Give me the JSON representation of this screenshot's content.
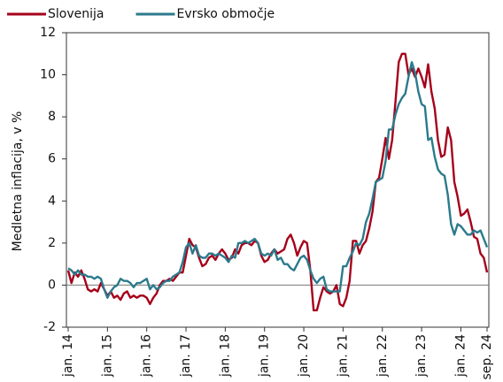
{
  "chart_data": {
    "type": "line",
    "y_label": "Medletna inflacija, v %",
    "categories": [
      "jan. 14",
      null,
      null,
      null,
      null,
      null,
      null,
      null,
      null,
      null,
      null,
      null,
      "jan. 15",
      null,
      null,
      null,
      null,
      null,
      null,
      null,
      null,
      null,
      null,
      null,
      "jan. 16",
      null,
      null,
      null,
      null,
      null,
      null,
      null,
      null,
      null,
      null,
      null,
      "jan. 17",
      null,
      null,
      null,
      null,
      null,
      null,
      null,
      null,
      null,
      null,
      null,
      "jan. 18",
      null,
      null,
      null,
      null,
      null,
      null,
      null,
      null,
      null,
      null,
      null,
      "jan. 19",
      null,
      null,
      null,
      null,
      null,
      null,
      null,
      null,
      null,
      null,
      null,
      "jan. 20",
      null,
      null,
      null,
      null,
      null,
      null,
      null,
      null,
      null,
      null,
      null,
      "jan. 21",
      null,
      null,
      null,
      null,
      null,
      null,
      null,
      null,
      null,
      null,
      null,
      "jan. 22",
      null,
      null,
      null,
      null,
      null,
      null,
      null,
      null,
      null,
      null,
      null,
      "jan. 23",
      null,
      null,
      null,
      null,
      null,
      null,
      null,
      null,
      null,
      null,
      null,
      "jan. 24",
      null,
      null,
      null,
      null,
      null,
      null,
      null,
      "sep. 24"
    ],
    "series": [
      {
        "name": "Slovenija",
        "color": "#a6001a",
        "values": [
          0.7,
          0.1,
          0.6,
          0.4,
          0.7,
          0.3,
          -0.2,
          -0.3,
          -0.2,
          -0.3,
          0.1,
          -0.2,
          -0.5,
          -0.3,
          -0.6,
          -0.5,
          -0.7,
          -0.4,
          -0.3,
          -0.6,
          -0.5,
          -0.6,
          -0.5,
          -0.5,
          -0.6,
          -0.9,
          -0.6,
          -0.4,
          0.0,
          0.2,
          0.2,
          0.3,
          0.2,
          0.4,
          0.6,
          0.6,
          1.4,
          2.2,
          1.9,
          1.8,
          1.3,
          0.9,
          1.0,
          1.3,
          1.4,
          1.2,
          1.5,
          1.7,
          1.5,
          1.2,
          1.3,
          1.7,
          1.5,
          1.9,
          2.0,
          2.0,
          1.9,
          2.1,
          2.0,
          1.4,
          1.1,
          1.2,
          1.5,
          1.7,
          1.5,
          1.6,
          1.7,
          2.2,
          2.4,
          2.0,
          1.4,
          1.8,
          2.1,
          2.0,
          0.7,
          -1.2,
          -1.2,
          -0.6,
          -0.1,
          -0.3,
          -0.4,
          -0.3,
          0.0,
          -0.9,
          -1.0,
          -0.6,
          0.2,
          2.1,
          2.1,
          1.5,
          1.9,
          2.1,
          2.7,
          3.5,
          4.9,
          5.1,
          6.0,
          7.0,
          6.0,
          6.9,
          8.7,
          10.6,
          11.0,
          11.0,
          10.0,
          10.3,
          9.9,
          10.3,
          9.9,
          9.4,
          10.5,
          9.2,
          8.4,
          6.9,
          6.1,
          6.2,
          7.5,
          6.9,
          4.9,
          4.2,
          3.3,
          3.4,
          3.6,
          3.0,
          2.3,
          2.2,
          1.5,
          1.3,
          0.6
        ]
      },
      {
        "name": "Evrsko območje",
        "color": "#2b7a8c",
        "values": [
          0.8,
          0.7,
          0.5,
          0.7,
          0.5,
          0.5,
          0.4,
          0.4,
          0.3,
          0.4,
          0.3,
          -0.2,
          -0.6,
          -0.3,
          -0.1,
          0.0,
          0.3,
          0.2,
          0.2,
          0.1,
          -0.1,
          0.1,
          0.1,
          0.2,
          0.3,
          -0.2,
          0.0,
          -0.2,
          -0.1,
          0.1,
          0.2,
          0.2,
          0.4,
          0.5,
          0.6,
          1.1,
          1.8,
          2.0,
          1.5,
          1.9,
          1.4,
          1.3,
          1.3,
          1.5,
          1.5,
          1.4,
          1.5,
          1.4,
          1.3,
          1.1,
          1.4,
          1.3,
          2.0,
          2.0,
          2.1,
          2.0,
          2.1,
          2.2,
          2.0,
          1.5,
          1.4,
          1.5,
          1.4,
          1.7,
          1.2,
          1.3,
          1.0,
          1.0,
          0.8,
          0.7,
          1.0,
          1.3,
          1.4,
          1.2,
          0.7,
          0.3,
          0.1,
          0.3,
          0.4,
          -0.2,
          -0.3,
          -0.3,
          -0.3,
          -0.3,
          0.9,
          0.9,
          1.3,
          1.6,
          2.0,
          1.9,
          2.2,
          3.0,
          3.4,
          4.1,
          4.9,
          5.0,
          5.1,
          5.9,
          7.4,
          7.4,
          8.1,
          8.6,
          8.9,
          9.1,
          9.9,
          10.6,
          10.1,
          9.2,
          8.6,
          8.5,
          6.9,
          7.0,
          6.1,
          5.5,
          5.3,
          5.2,
          4.3,
          2.9,
          2.4,
          2.9,
          2.8,
          2.6,
          2.4,
          2.4,
          2.6,
          2.5,
          2.6,
          2.2,
          1.8
        ]
      }
    ],
    "ylim": [
      -2,
      12
    ],
    "yticks": [
      -2,
      0,
      2,
      4,
      6,
      8,
      10,
      12
    ],
    "grid": false,
    "legend": "top-left"
  }
}
